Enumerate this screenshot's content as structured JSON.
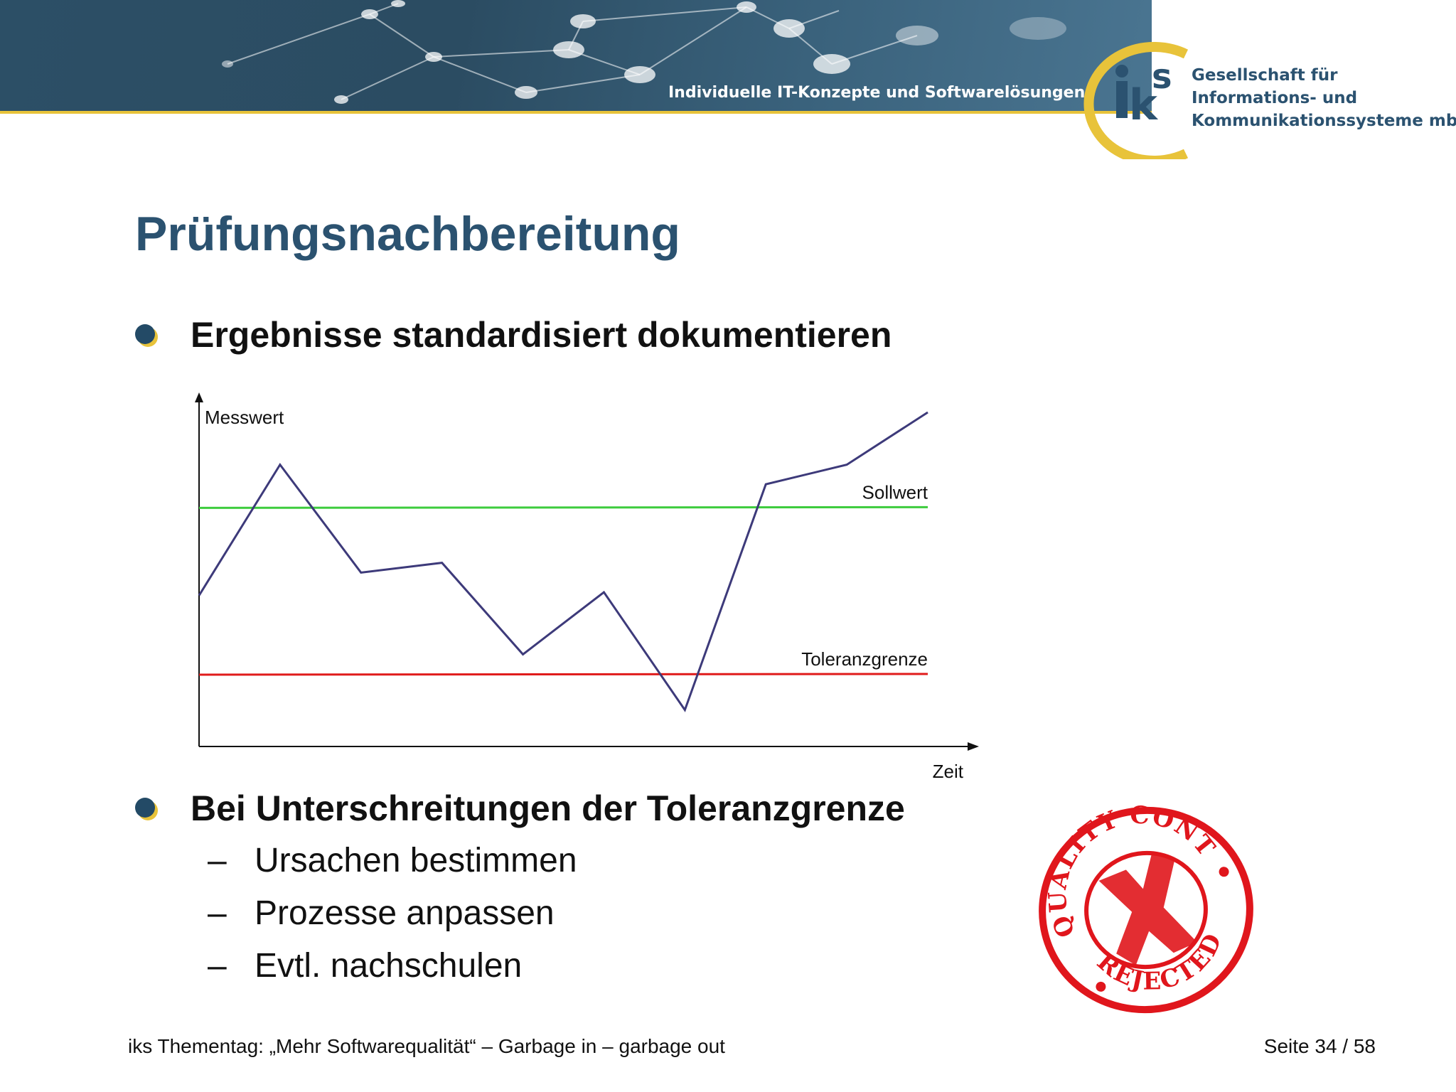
{
  "header": {
    "tagline": "Individuelle IT-Konzepte und Softwarelösungen",
    "logo": "iks",
    "company_lines": [
      "Gesellschaft für",
      "Informations- und",
      "Kommunikationssysteme mbH"
    ],
    "colors": {
      "banner": "#2c4f66",
      "accent": "#e8c33a",
      "brand": "#2b5270"
    }
  },
  "slide": {
    "title": "Prüfungsnachbereitung",
    "bullets": [
      {
        "text": "Ergebnisse standardisiert dokumentieren"
      },
      {
        "text": "Bei Unterschreitungen der Toleranzgrenze",
        "sub": [
          "Ursachen bestimmen",
          "Prozesse anpassen",
          "Evtl. nachschulen"
        ]
      }
    ],
    "dash": "–",
    "stamp": {
      "top_text": "QUALITY CONTROL",
      "bottom_text": "REJECTED",
      "color": "#e0161c"
    }
  },
  "chart_data": {
    "type": "line",
    "ylabel": "Messwert",
    "xlabel": "Zeit",
    "x": [
      0,
      1,
      2,
      3,
      4,
      5,
      6,
      7,
      8,
      9
    ],
    "ylim": [
      0,
      100
    ],
    "series": [
      {
        "values": [
          44,
          84,
          51,
          54,
          26,
          45,
          9,
          78,
          84,
          100
        ],
        "color": "#3d3a7a"
      }
    ],
    "reference_lines": [
      {
        "name": "Sollwert",
        "value": 71,
        "color": "#3dcc3d"
      },
      {
        "name": "Toleranzgrenze",
        "value": 20,
        "color": "#e01b1b"
      }
    ]
  },
  "footer": {
    "left": "iks Thementag: „Mehr Softwarequalität“ – Garbage in – garbage out",
    "right": "Seite 34 / 58"
  }
}
